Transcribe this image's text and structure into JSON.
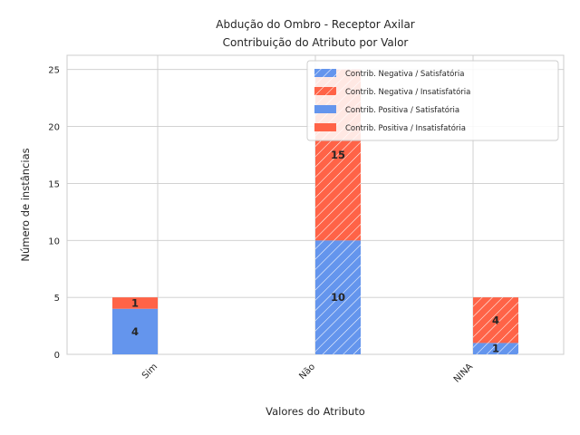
{
  "chart_data": {
    "type": "bar",
    "stacked": true,
    "title": [
      "Abdução do Ombro - Receptor Axilar",
      "Contribuição do Atributo por Valor"
    ],
    "xlabel": "Valores do Atributo",
    "ylabel": "Número de instâncias",
    "categories": [
      "Sim",
      "Não",
      "NINA"
    ],
    "ylim": [
      0,
      26.25
    ],
    "yticks": [
      0,
      5,
      10,
      15,
      20,
      25
    ],
    "grid": true,
    "legend_position": "top-right",
    "series": [
      {
        "name": "Contrib. Negativa / Satisfatória",
        "group": "negative",
        "color": "#6495ED",
        "hatch": true,
        "values": [
          0,
          10,
          1
        ]
      },
      {
        "name": "Contrib. Negativa / Insatisfatória",
        "group": "negative",
        "color": "#FF6347",
        "hatch": true,
        "values": [
          0,
          15,
          4
        ]
      },
      {
        "name": "Contrib. Positiva / Satisfatória",
        "group": "positive",
        "color": "#6495ED",
        "hatch": false,
        "values": [
          4,
          0,
          0
        ]
      },
      {
        "name": "Contrib. Positiva / Insatisfatória",
        "group": "positive",
        "color": "#FF6347",
        "hatch": false,
        "values": [
          1,
          0,
          0
        ]
      }
    ]
  }
}
